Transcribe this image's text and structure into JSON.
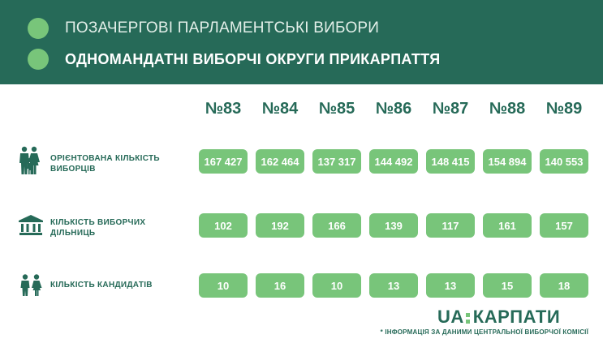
{
  "header": {
    "line1": "ПОЗАЧЕРГОВІ ПАРЛАМЕНТСЬКІ ВИБОРИ",
    "line2": "ОДНОМАНДАТНІ ВИБОРЧІ ОКРУГИ ПРИКАРПАТТЯ"
  },
  "districts": [
    "№83",
    "№84",
    "№85",
    "№86",
    "№87",
    "№88",
    "№89"
  ],
  "rows": [
    {
      "icon": "family-icon",
      "label_line1": "ОРІЄНТОВАНА КІЛЬКІСТЬ",
      "label_line2": "ВИБОРЦІВ",
      "values": [
        "167 427",
        "162 464",
        "137 317",
        "144 492",
        "148 415",
        "154 894",
        "140 553"
      ]
    },
    {
      "icon": "building-icon",
      "label_line1": "КІЛЬКІСТЬ ВИБОРЧИХ",
      "label_line2": "ДІЛЬНИЦЬ",
      "values": [
        "102",
        "192",
        "166",
        "139",
        "117",
        "161",
        "157"
      ]
    },
    {
      "icon": "people-icon",
      "label_line1": "КІЛЬКІСТЬ КАНДИДАТІВ",
      "label_line2": "",
      "values": [
        "10",
        "16",
        "10",
        "13",
        "13",
        "15",
        "18"
      ]
    }
  ],
  "logo": {
    "left": "UA",
    "right": "КАРПАТИ"
  },
  "footnote": "* ІНФОРМАЦІЯ ЗА ДАНИМИ ЦЕНТРАЛЬНОЇ ВИБОРЧОЇ КОМІСІЇ",
  "colors": {
    "header_bg": "#266a58",
    "accent_green": "#78c57a",
    "text_dark_green": "#266a58"
  }
}
